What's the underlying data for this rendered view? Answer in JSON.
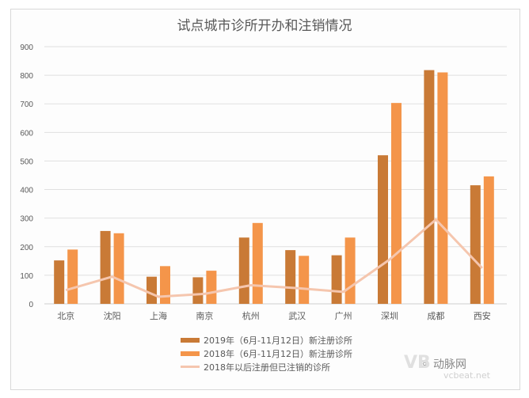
{
  "chart_data": {
    "type": "bar",
    "title": "试点城市诊所开办和注销情况",
    "xlabel": "",
    "ylabel": "",
    "ylim": [
      0,
      900
    ],
    "yticks": [
      0,
      100,
      200,
      300,
      400,
      500,
      600,
      700,
      800,
      900
    ],
    "grid": true,
    "legend_position": "bottom",
    "categories": [
      "北京",
      "沈阳",
      "上海",
      "南京",
      "杭州",
      "武汉",
      "广州",
      "深圳",
      "成都",
      "西安"
    ],
    "series": [
      {
        "name": "2019年（6月-11月12日）新注册诊所",
        "type": "bar",
        "color": "#C97A36",
        "values": [
          152,
          255,
          95,
          93,
          232,
          188,
          170,
          520,
          818,
          415
        ]
      },
      {
        "name": "2018年（6月-11月12日）新注册诊所",
        "type": "bar",
        "color": "#F4954A",
        "values": [
          190,
          247,
          132,
          116,
          283,
          168,
          232,
          703,
          810,
          446
        ]
      },
      {
        "name": "2018年以后注册但已注销的诊所",
        "type": "line",
        "color": "#F5C6AE",
        "values": [
          48,
          95,
          25,
          35,
          65,
          55,
          42,
          155,
          295,
          125
        ]
      }
    ]
  },
  "legend": {
    "items": [
      {
        "label": "2019年（6月-11月12日）新注册诊所",
        "color": "#C97A36"
      },
      {
        "label": "2018年（6月-11月12日）新注册诊所",
        "color": "#F4954A"
      },
      {
        "label": "2018年以后注册但已注销的诊所",
        "color": "#F5C6AE"
      }
    ]
  },
  "watermark": {
    "logo": "VB",
    "name": "动脉网",
    "site": "vcbeat.net"
  }
}
